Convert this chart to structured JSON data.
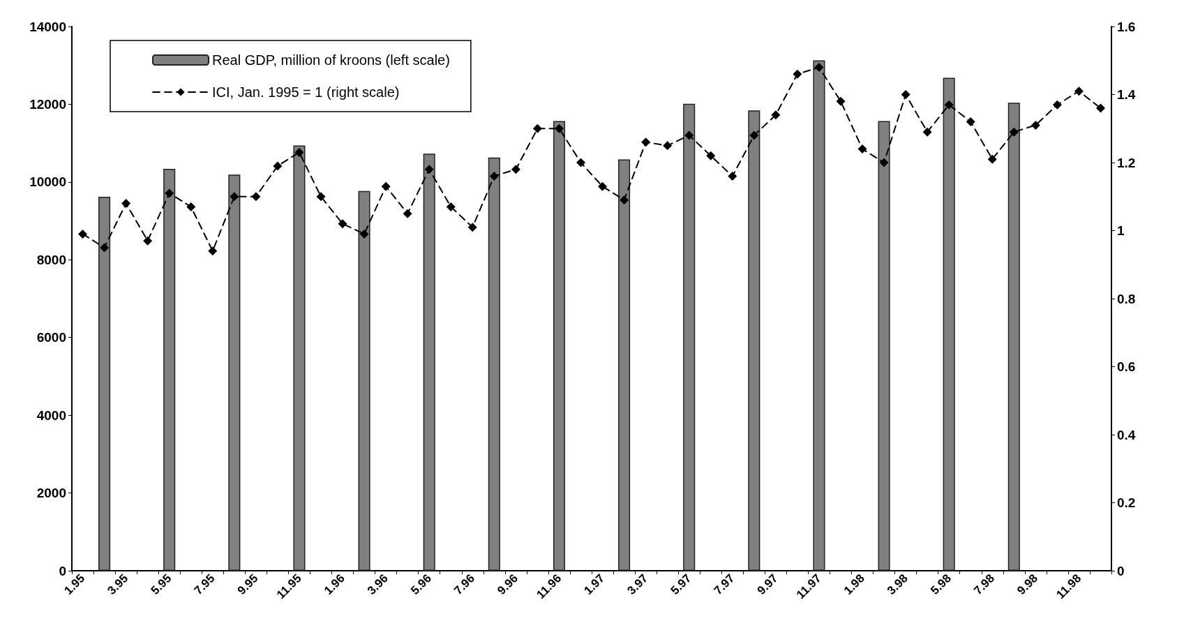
{
  "chart_data": {
    "type": "bar",
    "categories": [
      "1.95",
      null,
      "3.95",
      null,
      "5.95",
      null,
      "7.95",
      null,
      "9.95",
      null,
      "11.95",
      null,
      "1.96",
      null,
      "3.96",
      null,
      "5.96",
      null,
      "7.96",
      null,
      "9.96",
      null,
      "11.96",
      null,
      "1.97",
      null,
      "3.97",
      null,
      "5.97",
      null,
      "7.97",
      null,
      "9.97",
      null,
      "11.97",
      null,
      "1.98",
      null,
      "3.98",
      null,
      "5.98",
      null,
      "7.98",
      null,
      "9.98",
      null,
      "11.98",
      null
    ],
    "series": [
      {
        "name": "Real GDP, million of kroons (left scale)",
        "color": "#808080",
        "values": [
          null,
          9620,
          null,
          null,
          10340,
          null,
          null,
          10190,
          null,
          null,
          10940,
          null,
          null,
          9770,
          null,
          null,
          10730,
          null,
          null,
          10630,
          null,
          null,
          11570,
          null,
          null,
          10580,
          null,
          null,
          12010,
          null,
          null,
          11840,
          null,
          null,
          13130,
          null,
          null,
          11570,
          null,
          null,
          12680,
          null,
          null,
          12040,
          null,
          null,
          null,
          null
        ]
      },
      {
        "name": "ICI, Jan. 1995 = 1 (right scale)",
        "type": "line",
        "axis": "y2",
        "color": "#000000",
        "marker": "diamond",
        "line_style": "dashed",
        "values": [
          0.99,
          0.95,
          1.08,
          0.97,
          1.11,
          1.07,
          0.94,
          1.1,
          1.1,
          1.19,
          1.23,
          1.1,
          1.02,
          0.99,
          1.13,
          1.05,
          1.18,
          1.07,
          1.01,
          1.16,
          1.18,
          1.3,
          1.3,
          1.2,
          1.13,
          1.09,
          1.26,
          1.25,
          1.28,
          1.22,
          1.16,
          1.28,
          1.34,
          1.46,
          1.48,
          1.38,
          1.24,
          1.2,
          1.4,
          1.29,
          1.37,
          1.32,
          1.21,
          1.29,
          1.31,
          1.37,
          1.41,
          1.36
        ]
      }
    ],
    "ylim": [
      0,
      14000
    ],
    "yticks": [
      0,
      2000,
      4000,
      6000,
      8000,
      10000,
      12000,
      14000
    ],
    "y2lim": [
      0,
      1.6
    ],
    "y2ticks": [
      0,
      0.2,
      0.4,
      0.6,
      0.8,
      1,
      1.2,
      1.4,
      1.6
    ],
    "legend": "top left",
    "grid": false
  }
}
